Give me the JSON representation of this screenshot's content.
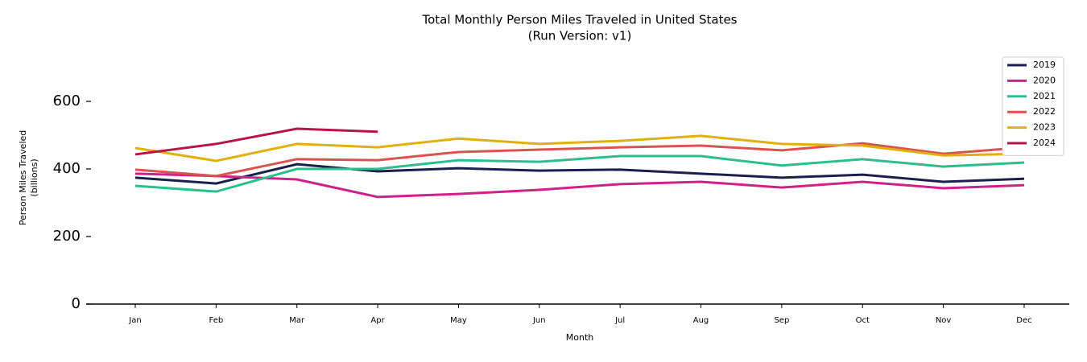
{
  "chart_data": {
    "type": "line",
    "title": "Total Monthly Person Miles Traveled in United States",
    "subtitle": "(Run Version: v1)",
    "x_label": "Month",
    "y_label": "Person Miles Traveled",
    "y_label_unit": "(billions)",
    "categories": [
      "Jan",
      "Feb",
      "Mar",
      "Apr",
      "May",
      "Jun",
      "Jul",
      "Aug",
      "Sep",
      "Oct",
      "Nov",
      "Dec"
    ],
    "series": [
      {
        "name": "2019",
        "color": "#1b1f4b",
        "values": [
          374,
          357,
          414,
          393,
          402,
          395,
          398,
          386,
          374,
          383,
          362,
          371
        ]
      },
      {
        "name": "2020",
        "color": "#d0208a",
        "values": [
          386,
          379,
          369,
          317,
          326,
          338,
          355,
          362,
          345,
          362,
          343,
          352
        ]
      },
      {
        "name": "2021",
        "color": "#2bbf8e",
        "values": [
          350,
          333,
          400,
          400,
          426,
          421,
          438,
          438,
          410,
          429,
          407,
          419
        ]
      },
      {
        "name": "2022",
        "color": "#d9534f",
        "values": [
          398,
          379,
          429,
          426,
          450,
          457,
          464,
          469,
          455,
          476,
          445,
          464
        ]
      },
      {
        "name": "2023",
        "color": "#e0b00f",
        "values": [
          462,
          424,
          474,
          464,
          490,
          474,
          483,
          498,
          474,
          469,
          440,
          445
        ]
      },
      {
        "name": "2024",
        "color": "#b5154b",
        "values": [
          443,
          474,
          519,
          510,
          null,
          null,
          null,
          null,
          null,
          null,
          null,
          null
        ]
      }
    ],
    "ylim": [
      0,
      750
    ],
    "yticks": [
      0,
      200,
      400,
      600
    ],
    "grid": false,
    "legend": "upper-right"
  }
}
